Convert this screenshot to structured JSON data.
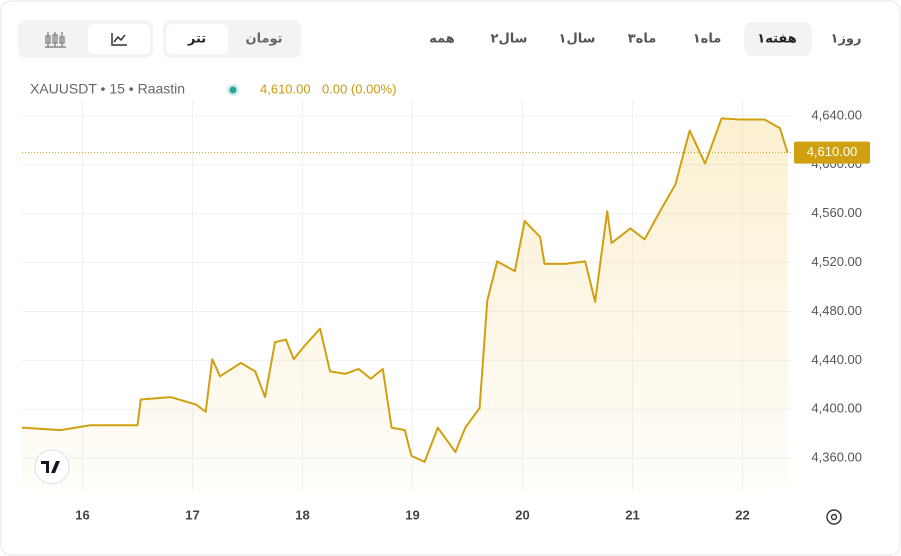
{
  "toolbar": {
    "currencies": [
      "تتر",
      "تومان"
    ],
    "ranges": [
      "۱روز",
      "۱هفته",
      "۱ماه",
      "۳ماه",
      "۱سال",
      "۲سال",
      "همه"
    ]
  },
  "legend": {
    "symbol": "XAUUSDT • 15 • Raastin",
    "price": "4,610.00",
    "change": "0.00 (0.00%)"
  },
  "chart_data": {
    "type": "area",
    "color": "#d1a010",
    "xlim": [
      15.45,
      22.45
    ],
    "xticks": [
      16,
      17,
      18,
      19,
      20,
      21,
      22
    ],
    "ylim": [
      4334,
      4653
    ],
    "yticks": [
      {
        "value": 4360,
        "label": "4,360.00"
      },
      {
        "value": 4400,
        "label": "4,400.00"
      },
      {
        "value": 4440,
        "label": "4,440.00"
      },
      {
        "value": 4480,
        "label": "4,480.00"
      },
      {
        "value": 4520,
        "label": "4,520.00"
      },
      {
        "value": 4560,
        "label": "4,560.00"
      },
      {
        "value": 4600,
        "label": "4,600.00"
      },
      {
        "value": 4640,
        "label": "4,640.00"
      }
    ],
    "grid": true,
    "last_value": {
      "value": 4610,
      "label": "4,610.00"
    },
    "series": [
      {
        "name": "XAUUSDT",
        "x": [
          15.45,
          15.8,
          16.07,
          16.5,
          16.53,
          16.8,
          17.03,
          17.12,
          17.18,
          17.25,
          17.44,
          17.57,
          17.66,
          17.75,
          17.85,
          17.92,
          18.02,
          18.16,
          18.25,
          18.39,
          18.51,
          18.62,
          18.73,
          18.81,
          18.93,
          18.99,
          19.11,
          19.23,
          19.39,
          19.48,
          19.61,
          19.68,
          19.77,
          19.93,
          20.02,
          20.16,
          20.2,
          20.39,
          20.57,
          20.66,
          20.77,
          20.81,
          20.98,
          21.11,
          21.25,
          21.39,
          21.52,
          21.66,
          21.81,
          21.98,
          22.2,
          22.34,
          22.41
        ],
        "values": [
          4385,
          4383,
          4387,
          4387,
          4408,
          4410,
          4404,
          4398,
          4441,
          4427,
          4438,
          4431,
          4410,
          4455,
          4457,
          4441,
          4452,
          4466,
          4431,
          4429,
          4433,
          4425,
          4433,
          4385,
          4383,
          4362,
          4357,
          4385,
          4365,
          4385,
          4401,
          4489,
          4521,
          4513,
          4554,
          4541,
          4519,
          4519,
          4521,
          4488,
          4562,
          4536,
          4548,
          4539,
          4562,
          4584,
          4628,
          4601,
          4638,
          4637,
          4637,
          4630,
          4610
        ]
      }
    ]
  }
}
